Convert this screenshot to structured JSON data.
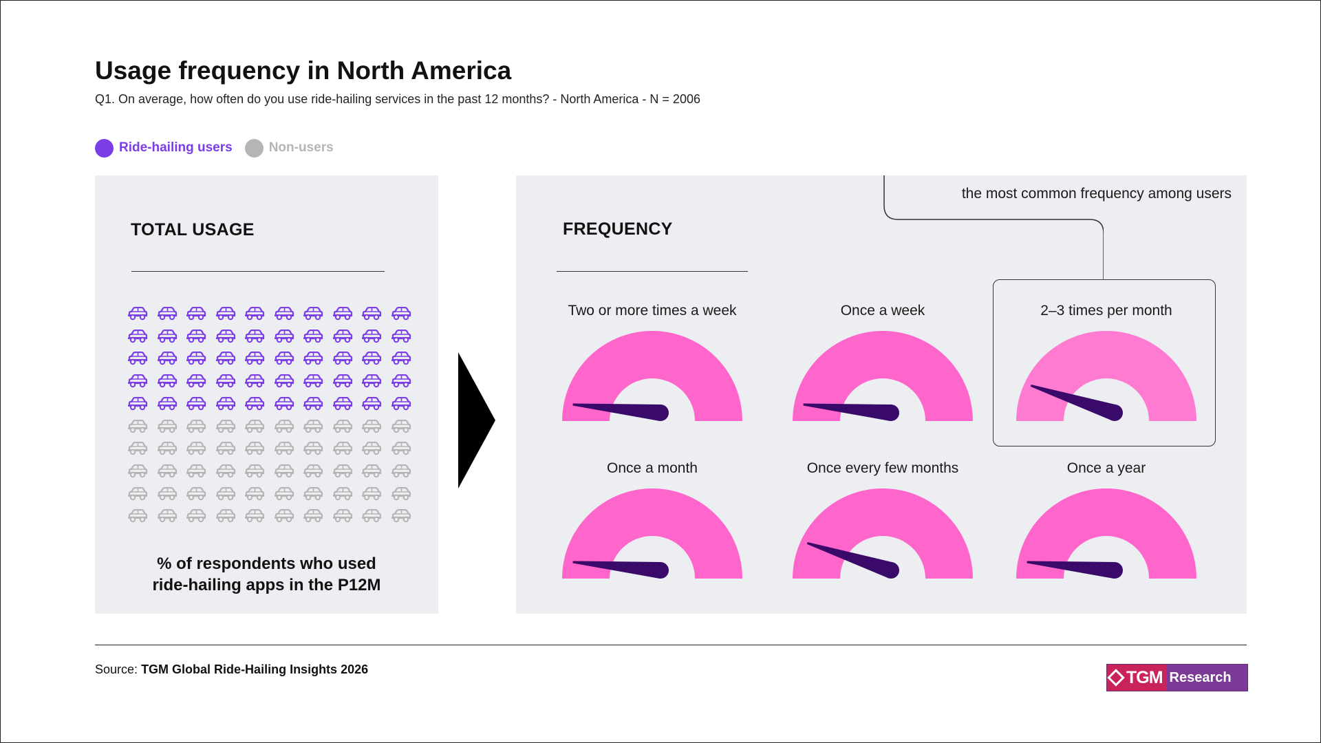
{
  "header": {
    "title": "Usage frequency in North America",
    "subtitle": "Q1. On average, how often do you use ride-hailing services in the past 12 months? - North America - N = 2006"
  },
  "legend": {
    "users_label": "Ride-hailing users",
    "nonusers_label": "Non-users",
    "users_color": "#7a3de6",
    "nonusers_color": "#b5b5b5"
  },
  "total_usage": {
    "title": "TOTAL USAGE",
    "caption_line1": "% of respondents who used",
    "caption_line2": "ride-hailing apps in the P12M",
    "icon": "car-icon",
    "rows": 10,
    "cols": 10,
    "user_rows": 5,
    "users_percent": 50
  },
  "frequency": {
    "title": "FREQUENCY",
    "callout": "the most common frequency among users",
    "gauge_color": "#ff66cc",
    "needle_color": "#3a0a6a",
    "highlight_color": "#ff7ad1"
  },
  "chart_data": {
    "type": "gauge",
    "scale": [
      0,
      100
    ],
    "items": [
      {
        "label": "Two or more times a week",
        "value": 3
      },
      {
        "label": "Once a week",
        "value": 3
      },
      {
        "label": "2–3 times per month",
        "value": 10,
        "highlighted": true
      },
      {
        "label": "Once a month",
        "value": 3
      },
      {
        "label": "Once every few months",
        "value": 10
      },
      {
        "label": "Once a year",
        "value": 3
      }
    ]
  },
  "footer": {
    "source_prefix": "Source:",
    "source_name": "TGM Global Ride-Hailing Insights 2026",
    "logo_left": "TGM",
    "logo_right": "Research"
  }
}
